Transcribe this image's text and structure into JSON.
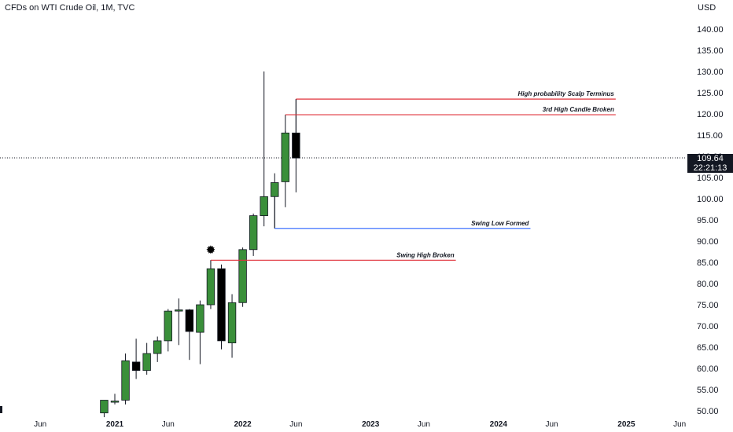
{
  "header": {
    "title": "CFDs on WTI Crude Oil, 1M, TVC",
    "currency": "USD"
  },
  "price_tag": {
    "value": "109.64",
    "countdown": "22:21:13"
  },
  "colors": {
    "up": "#3a8f3a",
    "down": "#000000",
    "resistance": "#e0303a",
    "support": "#2962ff",
    "current_price": "#131722"
  },
  "chart_data": {
    "type": "candlestick",
    "title": "CFDs on WTI Crude Oil, 1M, TVC",
    "ylabel": "USD",
    "y_ticks": [
      50,
      55,
      60,
      65,
      70,
      75,
      80,
      85,
      90,
      95,
      100,
      105,
      110,
      115,
      120,
      125,
      130,
      135,
      140
    ],
    "y_tick_labels": [
      "50.00",
      "55.00",
      "60.00",
      "65.00",
      "70.00",
      "75.00",
      "80.00",
      "85.00",
      "90.00",
      "95.00",
      "100.00",
      "105.00",
      "110.00",
      "115.00",
      "120.00",
      "125.00",
      "130.00",
      "135.00",
      "140.00"
    ],
    "x_ticks": [
      {
        "label": "Jun",
        "date": "2020-06",
        "major": false
      },
      {
        "label": "2021",
        "date": "2021-01",
        "major": true
      },
      {
        "label": "Jun",
        "date": "2021-06",
        "major": false
      },
      {
        "label": "2022",
        "date": "2022-01",
        "major": true
      },
      {
        "label": "Jun",
        "date": "2022-06",
        "major": false
      },
      {
        "label": "2023",
        "date": "2023-01",
        "major": true
      },
      {
        "label": "Jun",
        "date": "2023-06",
        "major": false
      },
      {
        "label": "2024",
        "date": "2024-01",
        "major": true
      },
      {
        "label": "Jun",
        "date": "2024-06",
        "major": false
      },
      {
        "label": "2025",
        "date": "2025-01",
        "major": true
      },
      {
        "label": "Jun",
        "date": "2025-06",
        "major": false
      }
    ],
    "candles": [
      {
        "date": "2020-12",
        "open": 49.5,
        "high": 52.5,
        "low": 48.5,
        "close": 52.5
      },
      {
        "date": "2021-01",
        "open": 52.3,
        "high": 54.0,
        "low": 51.5,
        "close": 52.3
      },
      {
        "date": "2021-02",
        "open": 52.5,
        "high": 63.5,
        "low": 51.5,
        "close": 61.8
      },
      {
        "date": "2021-03",
        "open": 61.5,
        "high": 67.0,
        "low": 57.5,
        "close": 59.5
      },
      {
        "date": "2021-04",
        "open": 59.5,
        "high": 66.0,
        "low": 58.5,
        "close": 63.5
      },
      {
        "date": "2021-05",
        "open": 63.5,
        "high": 67.5,
        "low": 61.5,
        "close": 66.5
      },
      {
        "date": "2021-06",
        "open": 66.5,
        "high": 74.0,
        "low": 64.0,
        "close": 73.5
      },
      {
        "date": "2021-07",
        "open": 73.5,
        "high": 76.5,
        "low": 65.5,
        "close": 73.8
      },
      {
        "date": "2021-08",
        "open": 73.8,
        "high": 74.0,
        "low": 62.0,
        "close": 68.7
      },
      {
        "date": "2021-09",
        "open": 68.5,
        "high": 76.0,
        "low": 61.0,
        "close": 75.0
      },
      {
        "date": "2021-10",
        "open": 75.0,
        "high": 85.5,
        "low": 74.0,
        "close": 83.5
      },
      {
        "date": "2021-11",
        "open": 83.5,
        "high": 84.5,
        "low": 64.5,
        "close": 66.5
      },
      {
        "date": "2021-12",
        "open": 66.0,
        "high": 77.5,
        "low": 62.5,
        "close": 75.5
      },
      {
        "date": "2022-01",
        "open": 75.5,
        "high": 88.5,
        "low": 74.5,
        "close": 88.0
      },
      {
        "date": "2022-02",
        "open": 88.0,
        "high": 96.5,
        "low": 86.5,
        "close": 96.0
      },
      {
        "date": "2022-03",
        "open": 96.0,
        "high": 130.0,
        "low": 93.5,
        "close": 100.5
      },
      {
        "date": "2022-04",
        "open": 100.5,
        "high": 106.0,
        "low": 93.0,
        "close": 103.8
      },
      {
        "date": "2022-05",
        "open": 104.0,
        "high": 116.0,
        "low": 98.0,
        "close": 115.5
      },
      {
        "date": "2022-06",
        "open": 115.5,
        "high": 123.5,
        "low": 101.5,
        "close": 109.6
      }
    ],
    "levels": [
      {
        "label": "High probability Scalp Terminus",
        "price": 123.5,
        "color": "resistance",
        "from": "2022-06",
        "to": "2024-12"
      },
      {
        "label": "3rd High Candle Broken",
        "price": 119.8,
        "color": "resistance",
        "from": "2022-05",
        "to": "2024-12"
      },
      {
        "label": "Swing Low Formed",
        "price": 93.0,
        "color": "support",
        "from": "2022-04",
        "to": "2024-04"
      },
      {
        "label": "Swing High Broken",
        "price": 85.5,
        "color": "resistance",
        "from": "2021-10",
        "to": "2023-09"
      }
    ],
    "current_price": 109.64,
    "marker": {
      "date": "2021-10",
      "price": 88.0,
      "shape": "starburst"
    }
  }
}
